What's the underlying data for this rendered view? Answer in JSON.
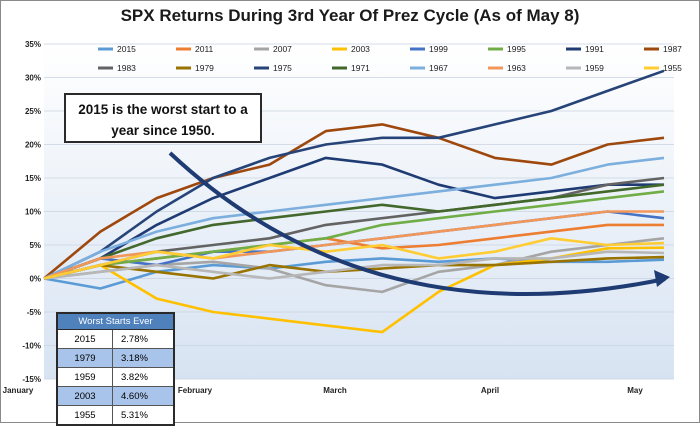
{
  "chart_data": {
    "type": "line",
    "title": "SPX Returns During 3rd Year Of Prez Cycle (As of May 8)",
    "x_tick_labels": [
      "January",
      "February",
      "March",
      "April",
      "May"
    ],
    "y_tick_labels": [
      "35%",
      "30%",
      "25%",
      "20%",
      "15%",
      "10%",
      "5%",
      "0%",
      "-5%",
      "-10%",
      "-15%"
    ],
    "ylim": [
      -15,
      35
    ],
    "ylabel": "",
    "xlabel": "",
    "legend_position": "top",
    "annotation": "2015 is the worst start to a year since 1950.",
    "series": [
      {
        "name": "2015",
        "color": "#5b9bd5",
        "values": [
          0,
          -1.5,
          1,
          2,
          1.5,
          2.5,
          3,
          2.5,
          3,
          2.5,
          2.5,
          2.8
        ]
      },
      {
        "name": "2011",
        "color": "#ed7d31",
        "values": [
          0,
          2,
          3,
          4,
          5,
          6,
          4.5,
          5,
          6,
          7,
          8,
          8
        ]
      },
      {
        "name": "2007",
        "color": "#a5a5a5",
        "values": [
          0,
          1,
          2,
          2.5,
          1.5,
          -1,
          -2,
          1,
          2,
          4,
          5,
          6
        ]
      },
      {
        "name": "2003",
        "color": "#ffc000",
        "values": [
          0,
          2,
          -3,
          -5,
          -6,
          -7,
          -8,
          -2,
          2,
          3,
          4.5,
          4.6
        ]
      },
      {
        "name": "1999",
        "color": "#4472c4",
        "values": [
          0,
          3,
          2,
          4,
          4,
          5,
          6,
          7,
          8,
          9,
          10,
          9
        ]
      },
      {
        "name": "1995",
        "color": "#70ad47",
        "values": [
          0,
          2,
          3,
          4,
          5,
          6,
          8,
          9,
          10,
          11,
          12,
          13
        ]
      },
      {
        "name": "1991",
        "color": "#1f3b73",
        "values": [
          0,
          3,
          8,
          12,
          15,
          18,
          17,
          14,
          12,
          13,
          14,
          14
        ]
      },
      {
        "name": "1987",
        "color": "#9e480e",
        "values": [
          0,
          7,
          12,
          15,
          17,
          22,
          23,
          21,
          18,
          17,
          20,
          21
        ]
      },
      {
        "name": "1983",
        "color": "#636363",
        "values": [
          0,
          2,
          4,
          5,
          6,
          8,
          9,
          10,
          11,
          12,
          14,
          15
        ]
      },
      {
        "name": "1979",
        "color": "#997300",
        "values": [
          0,
          2,
          1,
          0,
          2,
          1,
          1.5,
          2,
          2,
          2.5,
          3,
          3.2
        ]
      },
      {
        "name": "1975",
        "color": "#264478",
        "values": [
          0,
          4,
          10,
          15,
          18,
          20,
          21,
          21,
          23,
          25,
          28,
          31
        ]
      },
      {
        "name": "1971",
        "color": "#43682b",
        "values": [
          0,
          3,
          6,
          8,
          9,
          10,
          11,
          10,
          11,
          12,
          13,
          14
        ]
      },
      {
        "name": "1967",
        "color": "#7cafdd",
        "values": [
          0,
          4,
          7,
          9,
          10,
          11,
          12,
          13,
          14,
          15,
          17,
          18
        ]
      },
      {
        "name": "1963",
        "color": "#f1975a",
        "values": [
          0,
          3,
          4,
          3,
          4,
          5,
          6,
          7,
          8,
          9,
          10,
          10
        ]
      },
      {
        "name": "1959",
        "color": "#b7b7b7",
        "values": [
          0,
          1,
          2,
          1,
          0,
          1,
          2,
          2,
          3,
          3,
          4,
          3.8
        ]
      },
      {
        "name": "1955",
        "color": "#ffcd33",
        "values": [
          0,
          2,
          4,
          3,
          5,
          4,
          5,
          3,
          4,
          6,
          5,
          5.3
        ]
      }
    ]
  },
  "table": {
    "header": "Worst Starts Ever",
    "rows": [
      {
        "year": "2015",
        "value": "2.78%"
      },
      {
        "year": "1979",
        "value": "3.18%"
      },
      {
        "year": "1959",
        "value": "3.82%"
      },
      {
        "year": "2003",
        "value": "4.60%"
      },
      {
        "year": "1955",
        "value": "5.31%"
      }
    ]
  }
}
